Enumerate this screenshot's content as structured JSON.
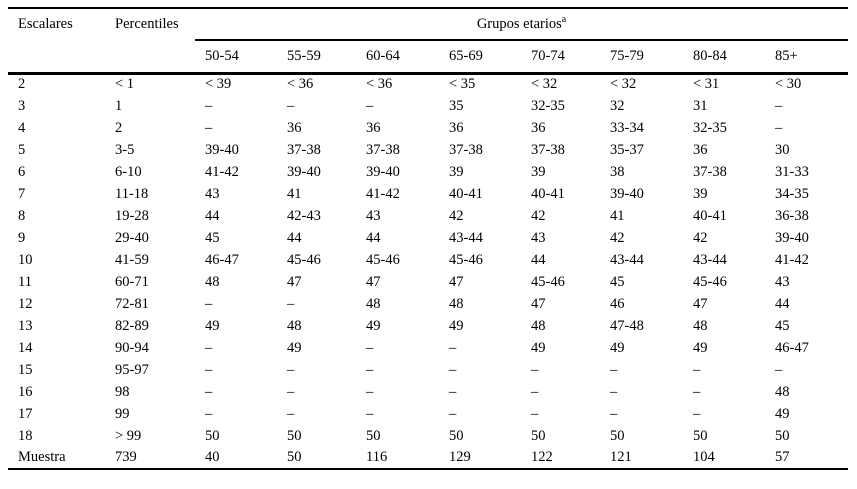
{
  "header": {
    "escalares": "Escalares",
    "percentiles": "Percentiles",
    "group_label": "Grupos etarios",
    "group_footnote_marker": "a",
    "age_groups": [
      "50-54",
      "55-59",
      "60-64",
      "65-69",
      "70-74",
      "75-79",
      "80-84",
      "85+"
    ]
  },
  "rows": [
    [
      "2",
      "< 1",
      "< 39",
      "< 36",
      "< 36",
      "< 35",
      "< 32",
      "< 32",
      "< 31",
      "< 30"
    ],
    [
      "3",
      "1",
      "–",
      "–",
      "–",
      "35",
      "32-35",
      "32",
      "31",
      "–"
    ],
    [
      "4",
      "2",
      "–",
      "36",
      "36",
      "36",
      "36",
      "33-34",
      "32-35",
      "–"
    ],
    [
      "5",
      "3-5",
      "39-40",
      "37-38",
      "37-38",
      "37-38",
      "37-38",
      "35-37",
      "36",
      "30"
    ],
    [
      "6",
      "6-10",
      "41-42",
      "39-40",
      "39-40",
      "39",
      "39",
      "38",
      "37-38",
      "31-33"
    ],
    [
      "7",
      "11-18",
      "43",
      "41",
      "41-42",
      "40-41",
      "40-41",
      "39-40",
      "39",
      "34-35"
    ],
    [
      "8",
      "19-28",
      "44",
      "42-43",
      "43",
      "42",
      "42",
      "41",
      "40-41",
      "36-38"
    ],
    [
      "9",
      "29-40",
      "45",
      "44",
      "44",
      "43-44",
      "43",
      "42",
      "42",
      "39-40"
    ],
    [
      "10",
      "41-59",
      "46-47",
      "45-46",
      "45-46",
      "45-46",
      "44",
      "43-44",
      "43-44",
      "41-42"
    ],
    [
      "11",
      "60-71",
      "48",
      "47",
      "47",
      "47",
      "45-46",
      "45",
      "45-46",
      "43"
    ],
    [
      "12",
      "72-81",
      "–",
      "–",
      "48",
      "48",
      "47",
      "46",
      "47",
      "44"
    ],
    [
      "13",
      "82-89",
      "49",
      "48",
      "49",
      "49",
      "48",
      "47-48",
      "48",
      "45"
    ],
    [
      "14",
      "90-94",
      "–",
      "49",
      "–",
      "–",
      "49",
      "49",
      "49",
      "46-47"
    ],
    [
      "15",
      "95-97",
      "–",
      "–",
      "–",
      "–",
      "–",
      "–",
      "–",
      "–"
    ],
    [
      "16",
      "98",
      "–",
      "–",
      "–",
      "–",
      "–",
      "–",
      "–",
      "48"
    ],
    [
      "17",
      "99",
      "–",
      "–",
      "–",
      "–",
      "–",
      "–",
      "–",
      "49"
    ],
    [
      "18",
      "> 99",
      "50",
      "50",
      "50",
      "50",
      "50",
      "50",
      "50",
      "50"
    ],
    [
      "Muestra",
      "739",
      "40",
      "50",
      "116",
      "129",
      "122",
      "121",
      "104",
      "57"
    ]
  ],
  "colors": {
    "text": "#000000",
    "background": "#ffffff",
    "rule": "#000000"
  }
}
